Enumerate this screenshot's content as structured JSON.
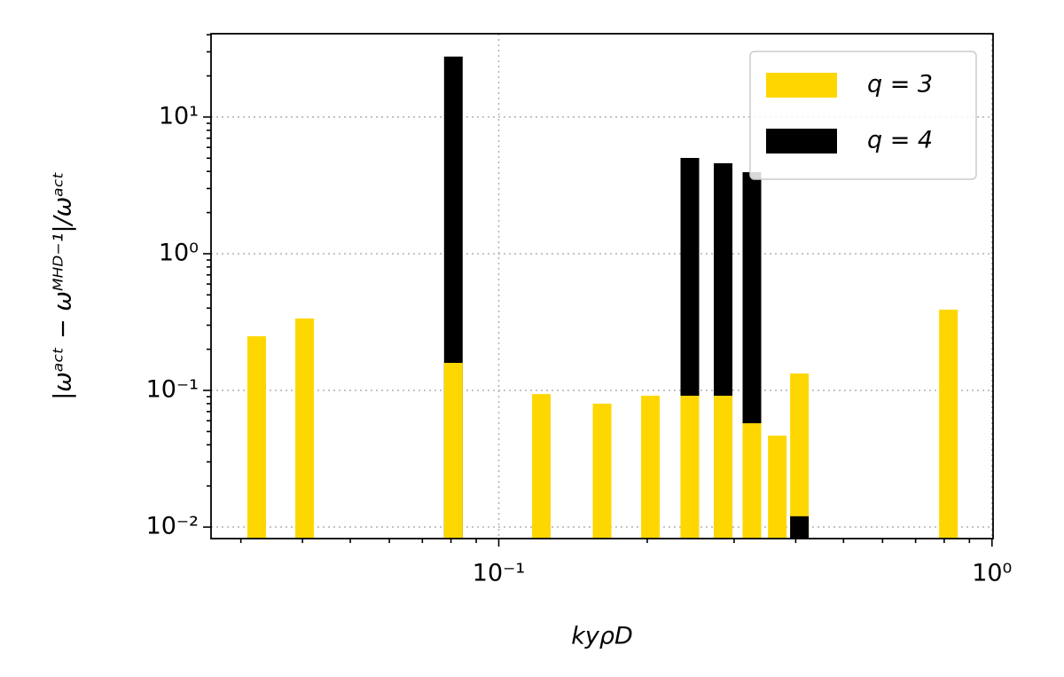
{
  "chart_data": {
    "type": "bar",
    "x_label": "kyρD",
    "y_label": "|ωᵃᶜᵗ − ωᴹᴴᴰ⁻¹|/ωᵃᶜᵗ",
    "x": [
      0.0323,
      0.0404,
      0.0809,
      0.122,
      0.162,
      0.203,
      0.244,
      0.285,
      0.326,
      0.367,
      0.407,
      0.816
    ],
    "series": [
      {
        "name": "q = 3",
        "color": "#ffd700",
        "values": [
          0.249,
          0.336,
          0.159,
          0.094,
          0.08,
          0.0914,
          0.0914,
          0.0914,
          0.0575,
          0.0467,
          0.133,
          0.39
        ]
      },
      {
        "name": "q = 4",
        "color": "#000000",
        "values": [
          null,
          null,
          27.7,
          null,
          null,
          null,
          5.02,
          4.59,
          3.95,
          null,
          0.012,
          null
        ]
      }
    ],
    "x_log": true,
    "y_log": true,
    "xlim": [
      0.0261,
      1.005
    ],
    "ylim": [
      0.00824,
      40.7
    ],
    "xticks": [
      {
        "value": 0.1,
        "label": "10⁻¹"
      },
      {
        "value": 1,
        "label": "10⁰"
      }
    ],
    "yticks": [
      {
        "value": 0.01,
        "label": "10⁻²"
      },
      {
        "value": 0.1,
        "label": "10⁻¹"
      },
      {
        "value": 1,
        "label": "10⁰"
      },
      {
        "value": 10,
        "label": "10¹"
      }
    ],
    "xminorticks": [
      0.03,
      0.04,
      0.05,
      0.06,
      0.07,
      0.08,
      0.09,
      0.2,
      0.3,
      0.4,
      0.5,
      0.6,
      0.7,
      0.8,
      0.9
    ],
    "yminorticks": [
      0.02,
      0.03,
      0.04,
      0.05,
      0.06,
      0.07,
      0.08,
      0.09,
      0.2,
      0.3,
      0.4,
      0.5,
      0.6,
      0.7,
      0.8,
      0.9,
      2,
      3,
      4,
      5,
      6,
      7,
      8,
      9,
      20,
      30,
      40
    ],
    "grid": true,
    "legend": "upper right"
  }
}
